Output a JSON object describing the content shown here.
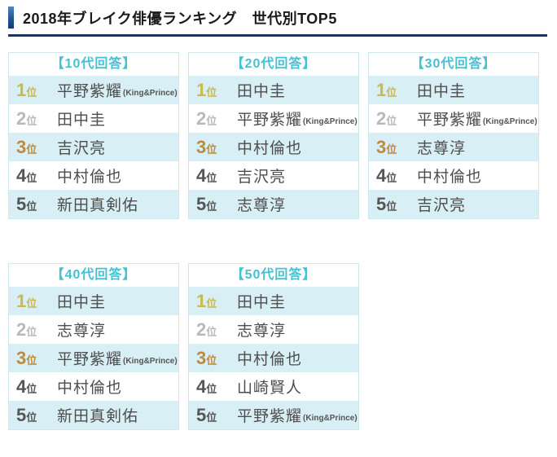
{
  "title": {
    "text": "2018年ブレイク俳優ランキング　世代別TOP5"
  },
  "colors": {
    "accent_teal": "#45c1d3",
    "row_highlight": "#d8eff5",
    "rank1_gold": "#c9b94e",
    "rank2_gray": "#b9b9b9",
    "rank3_bronze": "#bd8a3e",
    "rank_default": "#555555",
    "name_text": "#4d4d4d",
    "title_underline": "#1d3557",
    "table_border": "#cfe8ef"
  },
  "tables": [
    {
      "header": "【10代回答】",
      "rows": [
        {
          "rank": "1",
          "rank_suffix": "位",
          "name": "平野紫耀",
          "note": "(King&Prince)"
        },
        {
          "rank": "2",
          "rank_suffix": "位",
          "name": "田中圭"
        },
        {
          "rank": "3",
          "rank_suffix": "位",
          "name": "吉沢亮"
        },
        {
          "rank": "4",
          "rank_suffix": "位",
          "name": "中村倫也"
        },
        {
          "rank": "5",
          "rank_suffix": "位",
          "name": "新田真剣佑"
        }
      ]
    },
    {
      "header": "【20代回答】",
      "rows": [
        {
          "rank": "1",
          "rank_suffix": "位",
          "name": "田中圭"
        },
        {
          "rank": "2",
          "rank_suffix": "位",
          "name": "平野紫耀",
          "note": "(King&Prince)"
        },
        {
          "rank": "3",
          "rank_suffix": "位",
          "name": "中村倫也"
        },
        {
          "rank": "4",
          "rank_suffix": "位",
          "name": "吉沢亮"
        },
        {
          "rank": "5",
          "rank_suffix": "位",
          "name": "志尊淳"
        }
      ]
    },
    {
      "header": "【30代回答】",
      "rows": [
        {
          "rank": "1",
          "rank_suffix": "位",
          "name": "田中圭"
        },
        {
          "rank": "2",
          "rank_suffix": "位",
          "name": "平野紫耀",
          "note": "(King&Prince)"
        },
        {
          "rank": "3",
          "rank_suffix": "位",
          "name": "志尊淳"
        },
        {
          "rank": "4",
          "rank_suffix": "位",
          "name": "中村倫也"
        },
        {
          "rank": "5",
          "rank_suffix": "位",
          "name": "吉沢亮"
        }
      ]
    },
    {
      "header": "【40代回答】",
      "rows": [
        {
          "rank": "1",
          "rank_suffix": "位",
          "name": "田中圭"
        },
        {
          "rank": "2",
          "rank_suffix": "位",
          "name": "志尊淳"
        },
        {
          "rank": "3",
          "rank_suffix": "位",
          "name": "平野紫耀",
          "note": "(King&Prince)"
        },
        {
          "rank": "4",
          "rank_suffix": "位",
          "name": "中村倫也"
        },
        {
          "rank": "5",
          "rank_suffix": "位",
          "name": "新田真剣佑"
        }
      ]
    },
    {
      "header": "【50代回答】",
      "rows": [
        {
          "rank": "1",
          "rank_suffix": "位",
          "name": "田中圭"
        },
        {
          "rank": "2",
          "rank_suffix": "位",
          "name": "志尊淳"
        },
        {
          "rank": "3",
          "rank_suffix": "位",
          "name": "中村倫也"
        },
        {
          "rank": "4",
          "rank_suffix": "位",
          "name": "山崎賢人"
        },
        {
          "rank": "5",
          "rank_suffix": "位",
          "name": "平野紫耀",
          "note": "(King&Prince)"
        }
      ]
    }
  ]
}
